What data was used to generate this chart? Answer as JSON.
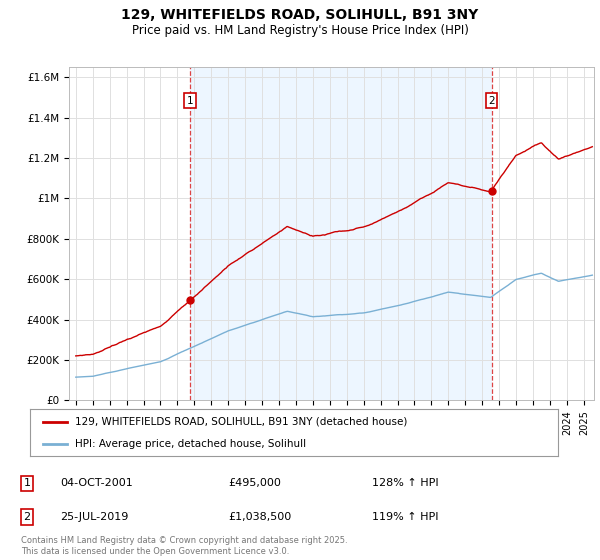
{
  "title": "129, WHITEFIELDS ROAD, SOLIHULL, B91 3NY",
  "subtitle": "Price paid vs. HM Land Registry's House Price Index (HPI)",
  "ylim": [
    0,
    1650000
  ],
  "yticks": [
    0,
    200000,
    400000,
    600000,
    800000,
    1000000,
    1200000,
    1400000,
    1600000
  ],
  "ytick_labels": [
    "£0",
    "£200K",
    "£400K",
    "£600K",
    "£800K",
    "£1M",
    "£1.2M",
    "£1.4M",
    "£1.6M"
  ],
  "line1_color": "#cc0000",
  "line2_color": "#7ab0d4",
  "vline_color": "#dd4444",
  "sale1_x": 2001.75,
  "sale1_y": 495000,
  "sale2_x": 2019.55,
  "sale2_y": 1038500,
  "xlim_left": 1994.6,
  "xlim_right": 2025.6,
  "legend_line1": "129, WHITEFIELDS ROAD, SOLIHULL, B91 3NY (detached house)",
  "legend_line2": "HPI: Average price, detached house, Solihull",
  "table_entries": [
    {
      "num": "1",
      "date": "04-OCT-2001",
      "price": "£495,000",
      "hpi": "128% ↑ HPI"
    },
    {
      "num": "2",
      "date": "25-JUL-2019",
      "price": "£1,038,500",
      "hpi": "119% ↑ HPI"
    }
  ],
  "footer": "Contains HM Land Registry data © Crown copyright and database right 2025.\nThis data is licensed under the Open Government Licence v3.0.",
  "background_color": "#ffffff",
  "grid_color": "#e0e0e0",
  "highlight_color": "#ddeeff"
}
